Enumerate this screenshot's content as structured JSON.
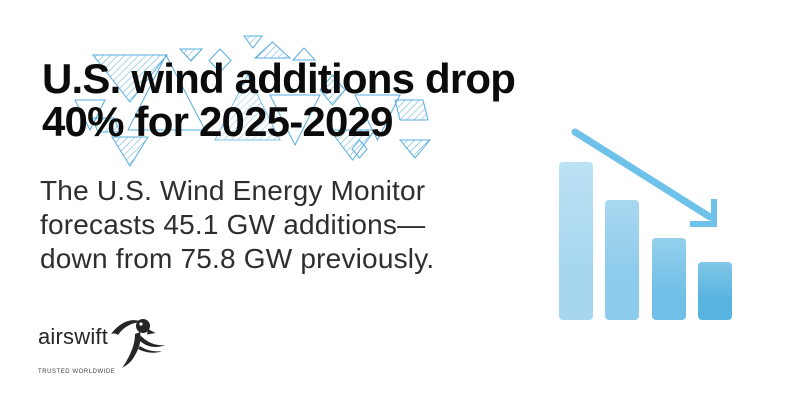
{
  "headline": {
    "line1": "U.S. wind additions drop",
    "line2": "40% for 2025-2029"
  },
  "body": {
    "line1": "The U.S. Wind Energy Monitor",
    "line2": "forecasts 45.1 GW additions—",
    "line3": "down from 75.8 GW previously."
  },
  "logo": {
    "wordmark": "airswift",
    "tagline": "TRUSTED WORLDWIDE"
  },
  "colors": {
    "background": "#ffffff",
    "headline_text": "#0b0b0b",
    "body_text": "#2e2e2e",
    "logo_text": "#262626",
    "pattern_outline": "#57ade0",
    "arrow": "#6ec1e9",
    "bar_fills": [
      "#a7d7f0",
      "#8ccbeb",
      "#71c0e7",
      "#57b4e0"
    ]
  },
  "chart_data": {
    "type": "bar",
    "categories": [
      "bar-1",
      "bar-2",
      "bar-3",
      "bar-4"
    ],
    "values": [
      158,
      120,
      82,
      58
    ],
    "values_unit": "px bar heights (decorative chart, no axes or labels)",
    "relative_to_first": [
      1.0,
      0.76,
      0.52,
      0.37
    ],
    "title": "",
    "xlabel": "",
    "ylabel": "",
    "axes_visible": false,
    "legend": false,
    "annotations": [
      "downward diagonal trend arrow over bars"
    ],
    "referenced_values": {
      "forecast_gw": 45.1,
      "previous_gw": 75.8,
      "drop_percent": 40,
      "period": "2025-2029"
    }
  }
}
